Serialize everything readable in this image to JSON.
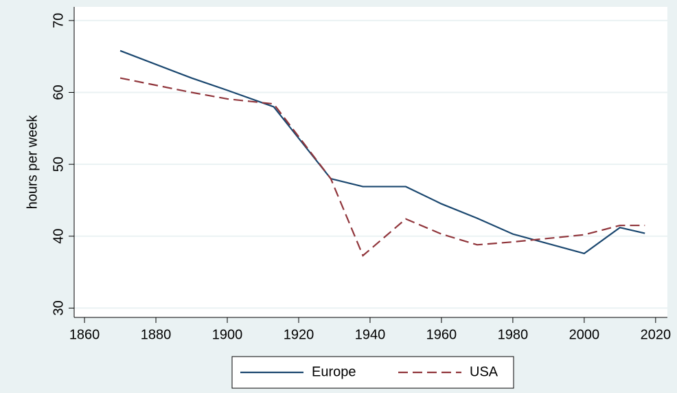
{
  "chart_data": {
    "type": "line",
    "y_label": "hours per week",
    "x": [
      1870,
      1890,
      1900,
      1913,
      1929,
      1938,
      1950,
      1960,
      1970,
      1980,
      2000,
      2010,
      2017
    ],
    "series": [
      {
        "name": "Europe",
        "color": "#1a476f",
        "dash": "solid",
        "values": [
          65.8,
          62,
          60.3,
          58,
          48,
          46.9,
          46.9,
          44.5,
          42.5,
          40.3,
          37.6,
          41.2,
          40.4
        ]
      },
      {
        "name": "USA",
        "color": "#90353b",
        "dash": "dashed",
        "values": [
          62,
          60,
          59.1,
          58.4,
          48,
          37.3,
          42.4,
          40.3,
          38.8,
          39.2,
          40.2,
          41.5,
          41.5
        ]
      }
    ],
    "xlim": [
      1857.1,
      2023.3
    ],
    "xticks": [
      1860,
      1880,
      1900,
      1920,
      1940,
      1960,
      1980,
      2000,
      2020
    ],
    "ylim": [
      28.7,
      71.9
    ],
    "yticks": [
      30,
      40,
      50,
      60,
      70
    ],
    "grid": true,
    "legend": "bottom"
  }
}
